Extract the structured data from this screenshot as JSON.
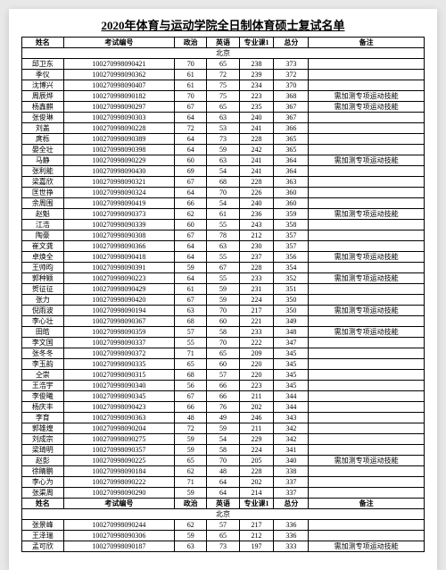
{
  "title": "2020年体育与运动学院全日制体育硕士复试名单",
  "columns": [
    "姓名",
    "考试编号",
    "政治",
    "英语",
    "专业课1",
    "总分",
    "备注"
  ],
  "section_label": "北京",
  "remark_text": "需加测专项运动技能",
  "rows1": [
    {
      "n": "邱卫东",
      "id": "100270998090421",
      "p": 70,
      "e": 65,
      "s": 238,
      "t": 373,
      "r": false
    },
    {
      "n": "季仪",
      "id": "100270998090362",
      "p": 61,
      "e": 72,
      "s": 239,
      "t": 372,
      "r": false
    },
    {
      "n": "沈博兴",
      "id": "100270998090407",
      "p": 61,
      "e": 75,
      "s": 234,
      "t": 370,
      "r": false
    },
    {
      "n": "周辰烨",
      "id": "100270998090182",
      "p": 70,
      "e": 75,
      "s": 223,
      "t": 368,
      "r": true
    },
    {
      "n": "杨鑫麒",
      "id": "100270998090297",
      "p": 67,
      "e": 65,
      "s": 235,
      "t": 367,
      "r": true
    },
    {
      "n": "张俊琳",
      "id": "100270998090303",
      "p": 64,
      "e": 63,
      "s": 240,
      "t": 367,
      "r": false
    },
    {
      "n": "刘盖",
      "id": "100270998090228",
      "p": 72,
      "e": 53,
      "s": 241,
      "t": 366,
      "r": false
    },
    {
      "n": "庹栎",
      "id": "100270998090389",
      "p": 64,
      "e": 73,
      "s": 228,
      "t": 365,
      "r": false
    },
    {
      "n": "晏全壮",
      "id": "100270998090398",
      "p": 64,
      "e": 59,
      "s": 242,
      "t": 365,
      "r": false
    },
    {
      "n": "马静",
      "id": "100270998090229",
      "p": 60,
      "e": 63,
      "s": 241,
      "t": 364,
      "r": true
    },
    {
      "n": "张利能",
      "id": "100270998090430",
      "p": 69,
      "e": 54,
      "s": 241,
      "t": 364,
      "r": false
    },
    {
      "n": "梁嘉欣",
      "id": "100270998090321",
      "p": 67,
      "e": 68,
      "s": 228,
      "t": 363,
      "r": false
    },
    {
      "n": "匡世挣",
      "id": "100270998090324",
      "p": 64,
      "e": 70,
      "s": 226,
      "t": 360,
      "r": false
    },
    {
      "n": "余周围",
      "id": "100270998090419",
      "p": 66,
      "e": 54,
      "s": 240,
      "t": 360,
      "r": false
    },
    {
      "n": "赵魁",
      "id": "100270998090373",
      "p": 62,
      "e": 61,
      "s": 236,
      "t": 359,
      "r": true
    },
    {
      "n": "江浩",
      "id": "100270998090339",
      "p": 60,
      "e": 55,
      "s": 243,
      "t": 358,
      "r": false
    },
    {
      "n": "陶豪",
      "id": "100270998090308",
      "p": 67,
      "e": 78,
      "s": 212,
      "t": 357,
      "r": false
    },
    {
      "n": "崔文龚",
      "id": "100270998090366",
      "p": 64,
      "e": 63,
      "s": 230,
      "t": 357,
      "r": false
    },
    {
      "n": "卓焕全",
      "id": "100270998090418",
      "p": 64,
      "e": 55,
      "s": 237,
      "t": 356,
      "r": true
    },
    {
      "n": "王帅昀",
      "id": "100270998090391",
      "p": 59,
      "e": 67,
      "s": 228,
      "t": 354,
      "r": false
    },
    {
      "n": "郭种颖",
      "id": "100270998090223",
      "p": 64,
      "e": 55,
      "s": 233,
      "t": 352,
      "r": true
    },
    {
      "n": "贺征征",
      "id": "100270998090429",
      "p": 61,
      "e": 59,
      "s": 231,
      "t": 351,
      "r": false
    },
    {
      "n": "张力",
      "id": "100270998090420",
      "p": 67,
      "e": 59,
      "s": 224,
      "t": 350,
      "r": false
    },
    {
      "n": "倪雨波",
      "id": "100270998090194",
      "p": 63,
      "e": 70,
      "s": 217,
      "t": 350,
      "r": true
    },
    {
      "n": "李心壮",
      "id": "100270998090367",
      "p": 68,
      "e": 60,
      "s": 221,
      "t": 349,
      "r": false
    },
    {
      "n": "田皓",
      "id": "100270998090359",
      "p": 57,
      "e": 58,
      "s": 233,
      "t": 348,
      "r": true
    },
    {
      "n": "李文国",
      "id": "100270998090337",
      "p": 55,
      "e": 70,
      "s": 222,
      "t": 347,
      "r": false
    },
    {
      "n": "张冬冬",
      "id": "100270998090372",
      "p": 71,
      "e": 65,
      "s": 209,
      "t": 345,
      "r": false
    },
    {
      "n": "李玉韵",
      "id": "100270998090335",
      "p": 65,
      "e": 60,
      "s": 220,
      "t": 345,
      "r": false
    },
    {
      "n": "仝崇",
      "id": "100270998090315",
      "p": 68,
      "e": 57,
      "s": 220,
      "t": 345,
      "r": false
    },
    {
      "n": "王浩宇",
      "id": "100270998090340",
      "p": 56,
      "e": 66,
      "s": 223,
      "t": 345,
      "r": false
    },
    {
      "n": "李俊曦",
      "id": "100270998090345",
      "p": 67,
      "e": 66,
      "s": 211,
      "t": 344,
      "r": false
    },
    {
      "n": "杨庆丰",
      "id": "100270998090423",
      "p": 66,
      "e": 76,
      "s": 202,
      "t": 344,
      "r": false
    },
    {
      "n": "李育",
      "id": "100270998090363",
      "p": 48,
      "e": 49,
      "s": 246,
      "t": 343,
      "r": false
    },
    {
      "n": "郭雄煌",
      "id": "100270998090204",
      "p": 72,
      "e": 59,
      "s": 211,
      "t": 342,
      "r": false
    },
    {
      "n": "刘成宗",
      "id": "100270998090275",
      "p": 59,
      "e": 54,
      "s": 229,
      "t": 342,
      "r": false
    },
    {
      "n": "梁琦明",
      "id": "100270998090357",
      "p": 59,
      "e": 58,
      "s": 224,
      "t": 341,
      "r": false
    },
    {
      "n": "赵彭",
      "id": "100270998090225",
      "p": 65,
      "e": 70,
      "s": 205,
      "t": 340,
      "r": true
    },
    {
      "n": "徐睛鹏",
      "id": "100270998090184",
      "p": 62,
      "e": 48,
      "s": 228,
      "t": 338,
      "r": false
    },
    {
      "n": "李心为",
      "id": "100270998090222",
      "p": 71,
      "e": 64,
      "s": 202,
      "t": 337,
      "r": false
    },
    {
      "n": "张渠周",
      "id": "100270998090290",
      "p": 59,
      "e": 64,
      "s": 214,
      "t": 337,
      "r": false
    }
  ],
  "rows2": [
    {
      "n": "张景峰",
      "id": "100270998090244",
      "p": 62,
      "e": 57,
      "s": 217,
      "t": 336,
      "r": false
    },
    {
      "n": "王泽瑞",
      "id": "100270998090306",
      "p": 59,
      "e": 65,
      "s": 212,
      "t": 336,
      "r": false
    },
    {
      "n": "孟可欣",
      "id": "100270998090187",
      "p": 63,
      "e": 73,
      "s": 197,
      "t": 333,
      "r": true
    }
  ]
}
